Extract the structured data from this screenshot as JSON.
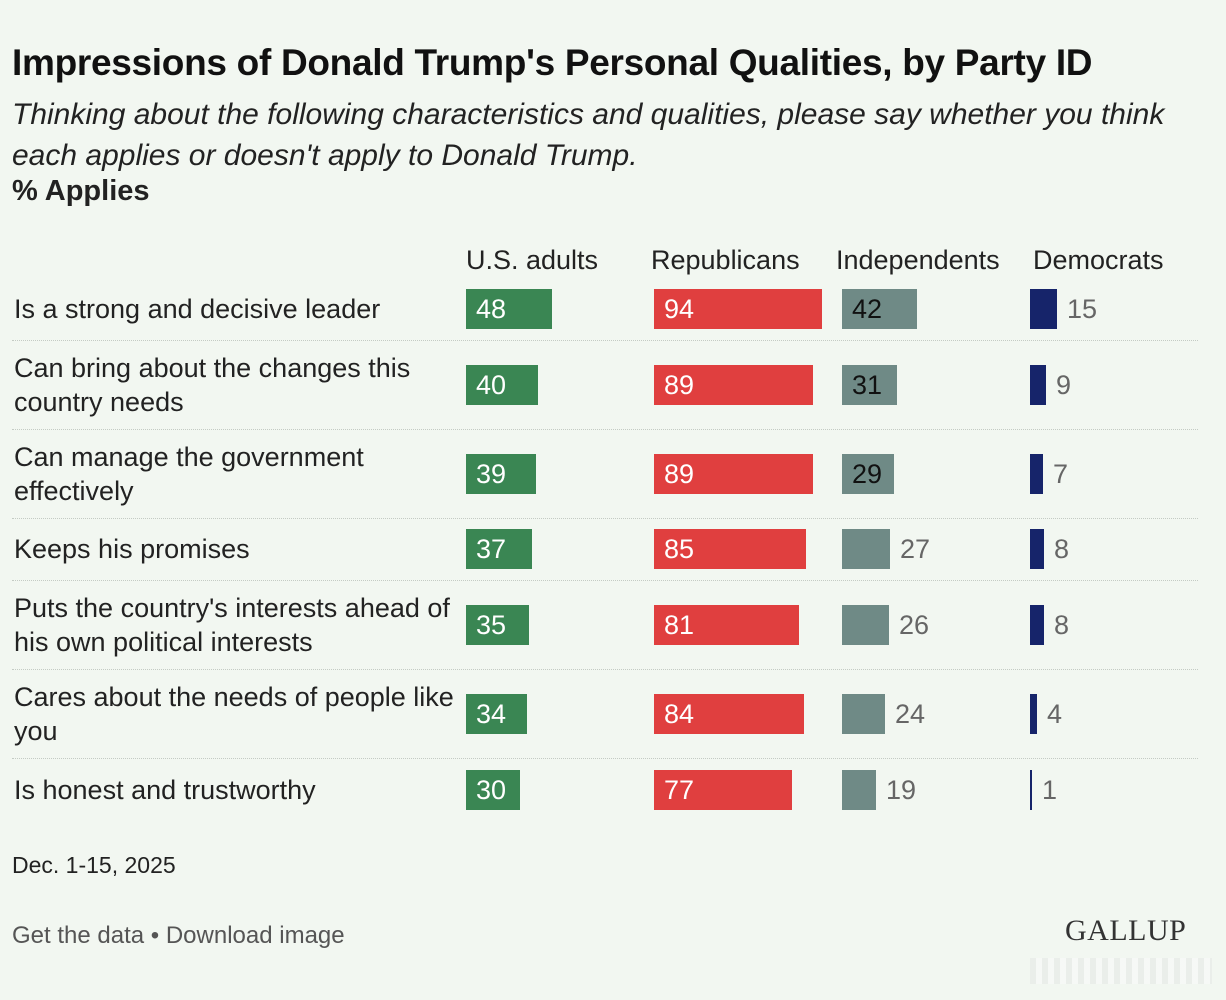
{
  "title": "Impressions of Donald Trump's Personal Qualities, by Party ID",
  "subtitle": "Thinking about the following characteristics and qualities, please say whether you think each applies or doesn't apply to Donald Trump.",
  "unit_label": "% Applies",
  "date": "Dec. 1-15, 2025",
  "footer": {
    "get_data": "Get the data",
    "separator": " • ",
    "download": "Download image"
  },
  "logo": "GALLUP",
  "colors": {
    "us_adults": "#3a8653",
    "republicans": "#e03f3f",
    "independents": "#6f8a86",
    "democrats": "#16246a",
    "background": "#f2f7f1"
  },
  "chart_data": {
    "type": "bar",
    "orientation": "horizontal",
    "xlim": [
      0,
      100
    ],
    "categories": [
      "Is a strong and decisive leader",
      "Can bring about the changes this country needs",
      "Can manage the government effectively",
      "Keeps his promises",
      "Puts the country's interests ahead of his own political interests",
      "Cares about the needs of people like you",
      "Is honest and trustworthy"
    ],
    "series": [
      {
        "name": "U.S. adults",
        "values": [
          48,
          40,
          39,
          37,
          35,
          34,
          30
        ]
      },
      {
        "name": "Republicans",
        "values": [
          94,
          89,
          89,
          85,
          81,
          84,
          77
        ]
      },
      {
        "name": "Independents",
        "values": [
          42,
          31,
          29,
          27,
          26,
          24,
          19
        ]
      },
      {
        "name": "Democrats",
        "values": [
          15,
          9,
          7,
          8,
          8,
          4,
          1
        ]
      }
    ]
  }
}
